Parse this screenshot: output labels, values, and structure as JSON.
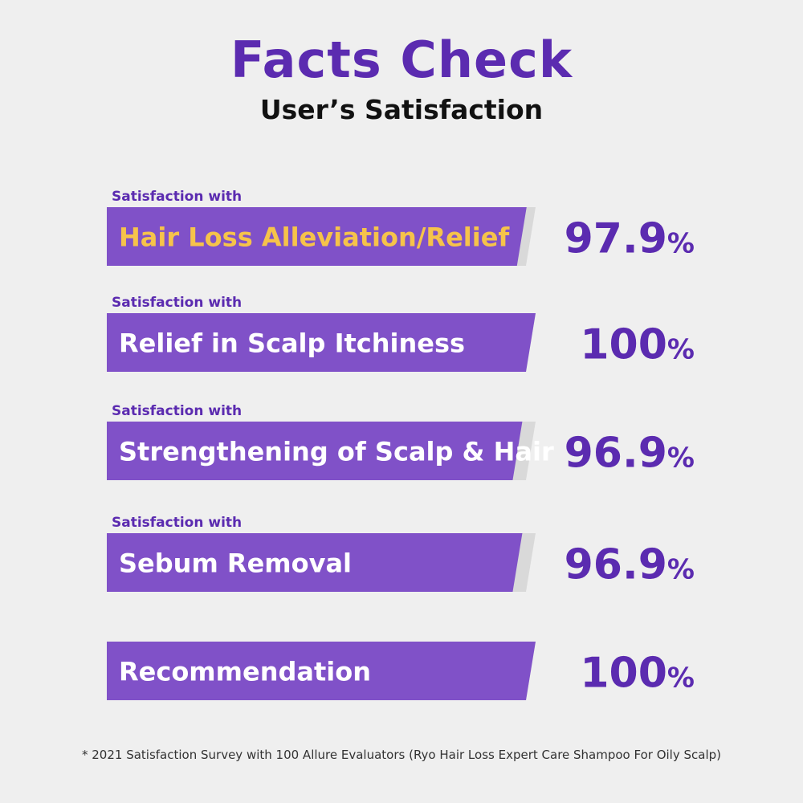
{
  "header": {
    "title": "Facts Check",
    "subtitle": "User’s Satisfaction"
  },
  "footnote": "* 2021 Satisfaction Survey with 100 Allure Evaluators (Ryo Hair Loss Expert Care Shampoo For Oily Scalp)",
  "colors": {
    "accent": "#5b2bb0",
    "bar": "#8051c8",
    "track": "#d9d9d9",
    "highlight_text": "#f6c34a"
  },
  "chart_data": {
    "type": "bar",
    "orientation": "horizontal",
    "xlim": [
      0,
      100
    ],
    "rows": [
      {
        "prefix": "Satisfaction with",
        "label": "Hair Loss Alleviation/Relief",
        "value": 97.9,
        "value_text": "97.9",
        "unit": "%",
        "highlight": true
      },
      {
        "prefix": "Satisfaction with",
        "label": "Relief in Scalp Itchiness",
        "value": 100,
        "value_text": "100",
        "unit": "%",
        "highlight": false
      },
      {
        "prefix": "Satisfaction with",
        "label": "Strengthening of Scalp & Hair",
        "value": 96.9,
        "value_text": "96.9",
        "unit": "%",
        "highlight": false
      },
      {
        "prefix": "Satisfaction with",
        "label": "Sebum Removal",
        "value": 96.9,
        "value_text": "96.9",
        "unit": "%",
        "highlight": false
      },
      {
        "prefix": "",
        "label": "Recommendation",
        "value": 100,
        "value_text": "100",
        "unit": "%",
        "highlight": false
      }
    ]
  }
}
